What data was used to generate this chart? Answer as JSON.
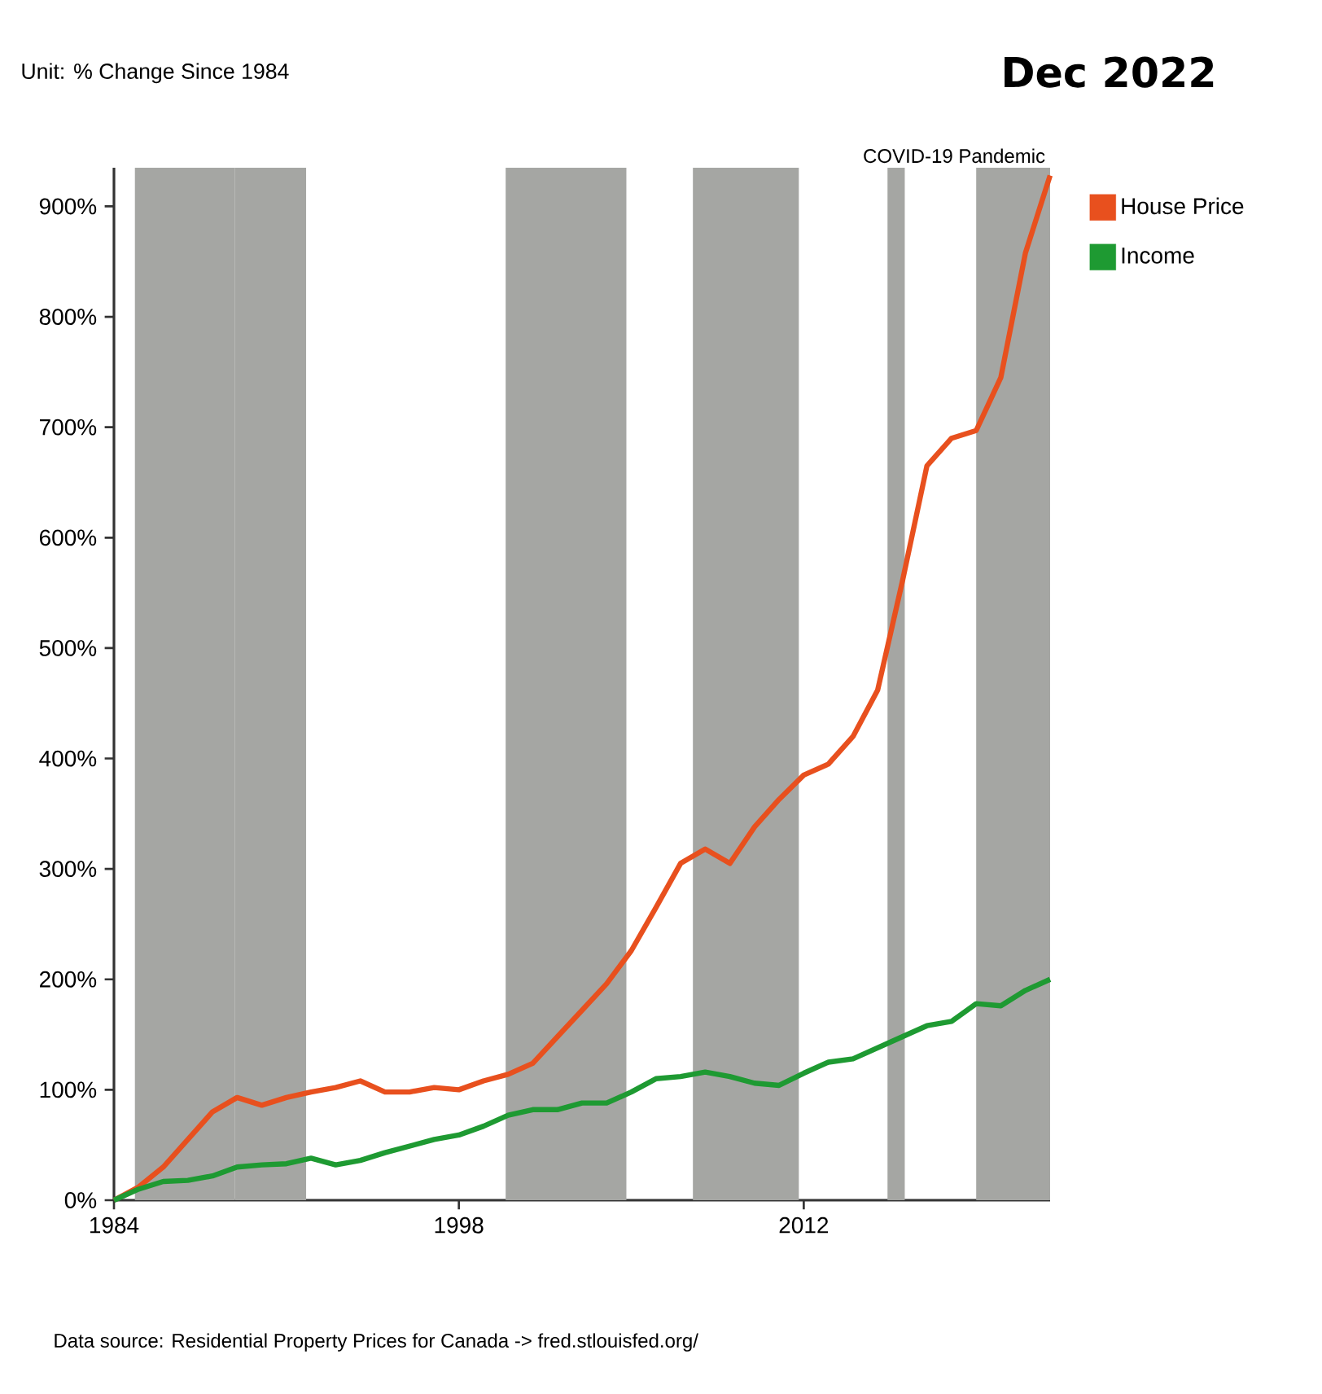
{
  "chart_data": {
    "type": "line",
    "title": "Dec 2022",
    "subtitle": "Unit: % Change Since 1984",
    "annotations": [
      "Data source: Residential Property Prices for Canada -> fred.stlouisfed.org/"
    ],
    "x": [
      1984,
      1985,
      1986,
      1987,
      1988,
      1989,
      1990,
      1991,
      1992,
      1993,
      1994,
      1995,
      1996,
      1997,
      1998,
      1999,
      2000,
      2001,
      2002,
      2003,
      2004,
      2005,
      2006,
      2007,
      2008,
      2009,
      2010,
      2011,
      2012,
      2013,
      2014,
      2015,
      2016,
      2017,
      2018,
      2019,
      2020,
      2021,
      2022
    ],
    "series": [
      {
        "name": "House Price",
        "color": "#e8501e",
        "values": [
          0,
          12,
          30,
          55,
          80,
          93,
          86,
          93,
          98,
          102,
          108,
          98,
          98,
          102,
          100,
          108,
          114,
          124,
          148,
          172,
          196,
          226,
          265,
          305,
          318,
          305,
          338,
          363,
          385,
          395,
          420,
          462,
          560,
          665,
          690,
          697,
          745,
          858,
          928
        ]
      },
      {
        "name": "Income",
        "color": "#1e9a32",
        "values": [
          0,
          10,
          17,
          18,
          22,
          30,
          32,
          33,
          38,
          32,
          36,
          43,
          49,
          55,
          59,
          67,
          77,
          82,
          82,
          88,
          88,
          98,
          110,
          112,
          116,
          112,
          106,
          104,
          115,
          125,
          128,
          138,
          148,
          158,
          162,
          178,
          176,
          190,
          200
        ]
      }
    ],
    "xlim": [
      1984,
      2022
    ],
    "ylim": [
      0,
      935
    ],
    "xticks": [
      1984,
      1998,
      2012
    ],
    "yticks": [
      {
        "value": 0,
        "label": "0%"
      },
      {
        "value": 100,
        "label": "100%"
      },
      {
        "value": 200,
        "label": "200%"
      },
      {
        "value": 300,
        "label": "300%"
      },
      {
        "value": 400,
        "label": "400%"
      },
      {
        "value": 500,
        "label": "500%"
      },
      {
        "value": 600,
        "label": "600%"
      },
      {
        "value": 700,
        "label": "700%"
      },
      {
        "value": 800,
        "label": "800%"
      },
      {
        "value": 900,
        "label": "900%"
      }
    ],
    "bands": [
      {
        "axis": "x",
        "from": 1984.85,
        "to": 1988.9,
        "color": "#a5a6a3"
      },
      {
        "axis": "x",
        "from": 1988.9,
        "to": 1991.8,
        "color": "#a5a6a3"
      },
      {
        "axis": "x",
        "from": 1999.9,
        "to": 2004.8,
        "color": "#a5a6a3"
      },
      {
        "axis": "x",
        "from": 2007.5,
        "to": 2011.8,
        "color": "#a5a6a3"
      },
      {
        "axis": "x",
        "from": 2015.4,
        "to": 2016.1,
        "color": "#a5a6a3"
      },
      {
        "axis": "x",
        "from": 2019.0,
        "to": 2022,
        "color": "#a5a6a3",
        "label": "COVID-19 Pandemic"
      }
    ],
    "legend": "top right",
    "grid": false
  }
}
